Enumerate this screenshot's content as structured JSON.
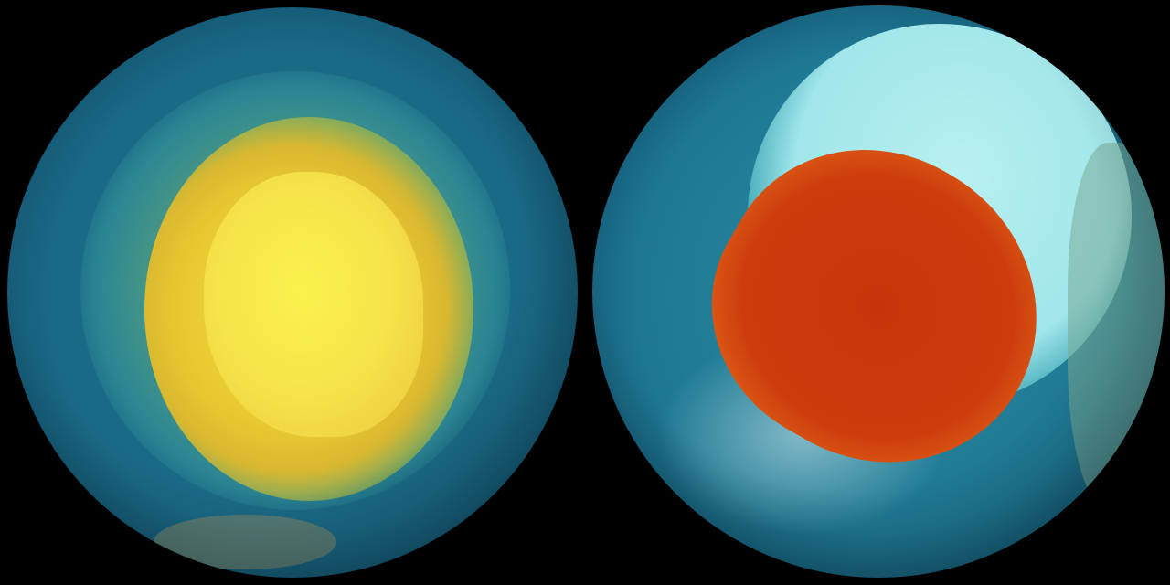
{
  "image": {
    "globes": [
      {
        "id": "left-globe",
        "colors": {
          "ocean": "#1a6a86",
          "ring": "#3aa3a8",
          "halo": "#e0c830",
          "core": "#f6e64a"
        }
      },
      {
        "id": "right-globe",
        "colors": {
          "ocean": "#1e7893",
          "ice": "#9fe6ea",
          "halo": "#f0d040",
          "core": "#c83a0c"
        }
      }
    ]
  }
}
